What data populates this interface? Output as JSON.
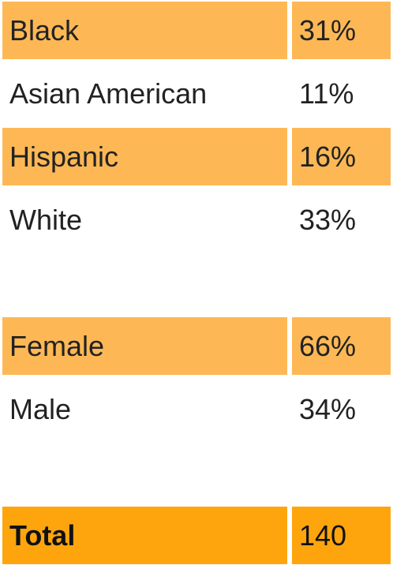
{
  "table": {
    "sections": [
      {
        "rows": [
          [
            "Black",
            "31%"
          ],
          [
            "Asian American",
            "11%"
          ],
          [
            "Hispanic",
            "16%"
          ],
          [
            "White",
            "33%"
          ]
        ]
      },
      {
        "rows": [
          [
            "Female",
            "66%"
          ],
          [
            "Male",
            "34%"
          ]
        ]
      }
    ],
    "total": [
      "Total",
      "140"
    ]
  }
}
